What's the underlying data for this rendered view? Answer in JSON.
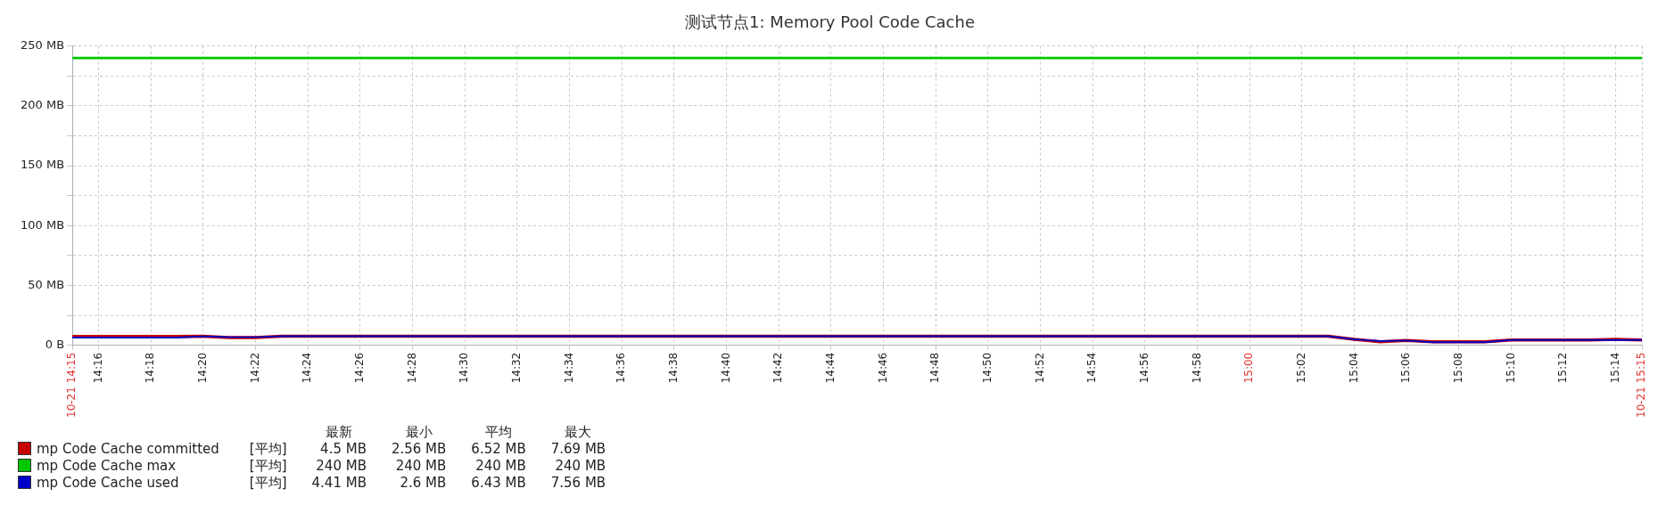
{
  "chart_data": {
    "type": "line",
    "title": "测试节点1: Memory Pool Code Cache",
    "xlim": [
      14.25,
      15.25
    ],
    "xticks": [
      {
        "value": 14.25,
        "label": "10-21 14:15"
      },
      {
        "value": 14.2667,
        "label": "14:16"
      },
      {
        "value": 14.3,
        "label": "14:18"
      },
      {
        "value": 14.3333,
        "label": "14:20"
      },
      {
        "value": 14.3667,
        "label": "14:22"
      },
      {
        "value": 14.4,
        "label": "14:24"
      },
      {
        "value": 14.4333,
        "label": "14:26"
      },
      {
        "value": 14.4667,
        "label": "14:28"
      },
      {
        "value": 14.5,
        "label": "14:30"
      },
      {
        "value": 14.5333,
        "label": "14:32"
      },
      {
        "value": 14.5667,
        "label": "14:34"
      },
      {
        "value": 14.6,
        "label": "14:36"
      },
      {
        "value": 14.6333,
        "label": "14:38"
      },
      {
        "value": 14.6667,
        "label": "14:40"
      },
      {
        "value": 14.7,
        "label": "14:42"
      },
      {
        "value": 14.7333,
        "label": "14:44"
      },
      {
        "value": 14.7667,
        "label": "14:46"
      },
      {
        "value": 14.8,
        "label": "14:48"
      },
      {
        "value": 14.8333,
        "label": "14:50"
      },
      {
        "value": 14.8667,
        "label": "14:52"
      },
      {
        "value": 14.9,
        "label": "14:54"
      },
      {
        "value": 14.9333,
        "label": "14:56"
      },
      {
        "value": 14.9667,
        "label": "14:58"
      },
      {
        "value": 15,
        "label": "15:00"
      },
      {
        "value": 15.0333,
        "label": "15:02"
      },
      {
        "value": 15.0667,
        "label": "15:04"
      },
      {
        "value": 15.1,
        "label": "15:06"
      },
      {
        "value": 15.1333,
        "label": "15:08"
      },
      {
        "value": 15.1667,
        "label": "15:10"
      },
      {
        "value": 15.2,
        "label": "15:12"
      },
      {
        "value": 15.2333,
        "label": "15:14"
      },
      {
        "value": 15.25,
        "label": "10-21 15:15"
      }
    ],
    "ylim": [
      0,
      250
    ],
    "yticks": [
      {
        "value": 0,
        "label": "0 B"
      },
      {
        "value": 25,
        "label": null
      },
      {
        "value": 50,
        "label": "50 MB"
      },
      {
        "value": 75,
        "label": null
      },
      {
        "value": 100,
        "label": "100 MB"
      },
      {
        "value": 125,
        "label": null
      },
      {
        "value": 150,
        "label": "150 MB"
      },
      {
        "value": 175,
        "label": null
      },
      {
        "value": 200,
        "label": "200 MB"
      },
      {
        "value": 225,
        "label": null
      },
      {
        "value": 250,
        "label": "250 MB"
      }
    ],
    "grid": true,
    "legend": "bottom left",
    "marker": "none",
    "line_style": "solid",
    "series": [
      {
        "name": "mp Code Cache committed",
        "color": "#c80000",
        "x": [
          14.25,
          14.3167,
          14.3333,
          14.35,
          14.3667,
          14.3833,
          15.05,
          15.0667,
          15.0833,
          15.1,
          15.1167,
          15.15,
          15.1667,
          15.2167,
          15.2333,
          15.25
        ],
        "values": [
          7.5,
          7.5,
          7.6,
          6.5,
          6.5,
          7.6,
          7.6,
          5,
          3,
          4,
          3,
          3,
          4.4,
          4.4,
          5,
          4.5
        ]
      },
      {
        "name": "mp Code Cache max",
        "color": "#00c800",
        "x": [
          14.25,
          15.25
        ],
        "values": [
          240,
          240
        ]
      },
      {
        "name": "mp Code Cache used",
        "color": "#0000c8",
        "x": [
          14.25,
          14.3167,
          14.3333,
          14.35,
          14.3667,
          14.3833,
          15.05,
          15.0667,
          15.0833,
          15.1,
          15.1167,
          15.15,
          15.1667,
          15.2167,
          15.2333,
          15.25
        ],
        "values": [
          6.5,
          6.5,
          7.5,
          6.8,
          6.8,
          7.6,
          7.6,
          5,
          3.5,
          4,
          2.6,
          2.6,
          4.4,
          4.4,
          4.4,
          4.4
        ]
      }
    ],
    "annotations": [
      "最新",
      "最小",
      "平均",
      "最大",
      "[平均]",
      "4.5 MB",
      "2.56 MB",
      "6.52 MB",
      "7.69 MB",
      "[平均]",
      "240 MB",
      "240 MB",
      "240 MB",
      "240 MB",
      "[平均]",
      "4.41 MB",
      "2.6 MB",
      "6.43 MB",
      "7.56 MB"
    ]
  }
}
